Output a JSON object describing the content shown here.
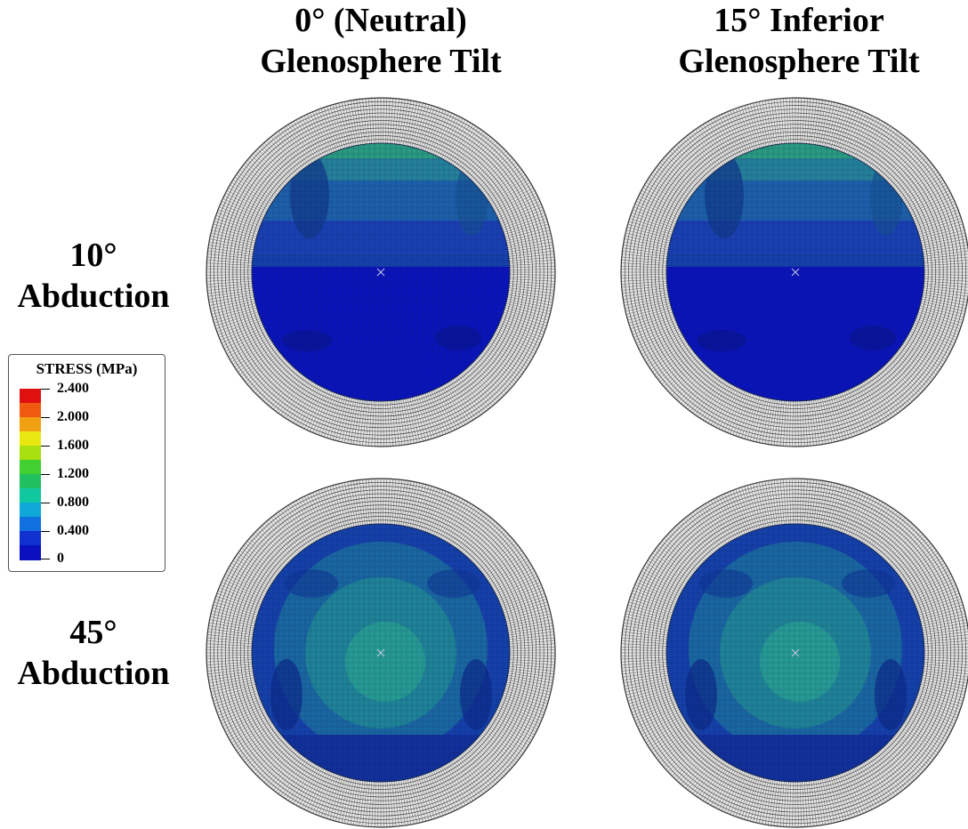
{
  "columns": [
    {
      "line1": "0° (Neutral)",
      "line2": "Glenosphere Tilt"
    },
    {
      "line1": "15°  Inferior",
      "line2": "Glenosphere Tilt"
    }
  ],
  "rows": [
    {
      "line1": "10°",
      "line2": "Abduction"
    },
    {
      "line1": "45°",
      "line2": "Abduction"
    }
  ],
  "legend": {
    "title": "STRESS (MPa)",
    "labels": [
      "2.400",
      "2.000",
      "1.600",
      "1.200",
      "0.800",
      "0.400",
      "0"
    ],
    "colors": [
      "#e01010",
      "#f05a10",
      "#f0a010",
      "#e8e810",
      "#a8e010",
      "#40d030",
      "#20c060",
      "#10c8a0",
      "#10a8d8",
      "#1070e0",
      "#1030d0",
      "#0a10c0"
    ]
  },
  "panels": [
    {
      "abduction": "10°",
      "tilt": "0°"
    },
    {
      "abduction": "10°",
      "tilt": "15°"
    },
    {
      "abduction": "45°",
      "tilt": "0°"
    },
    {
      "abduction": "45°",
      "tilt": "15°"
    }
  ]
}
